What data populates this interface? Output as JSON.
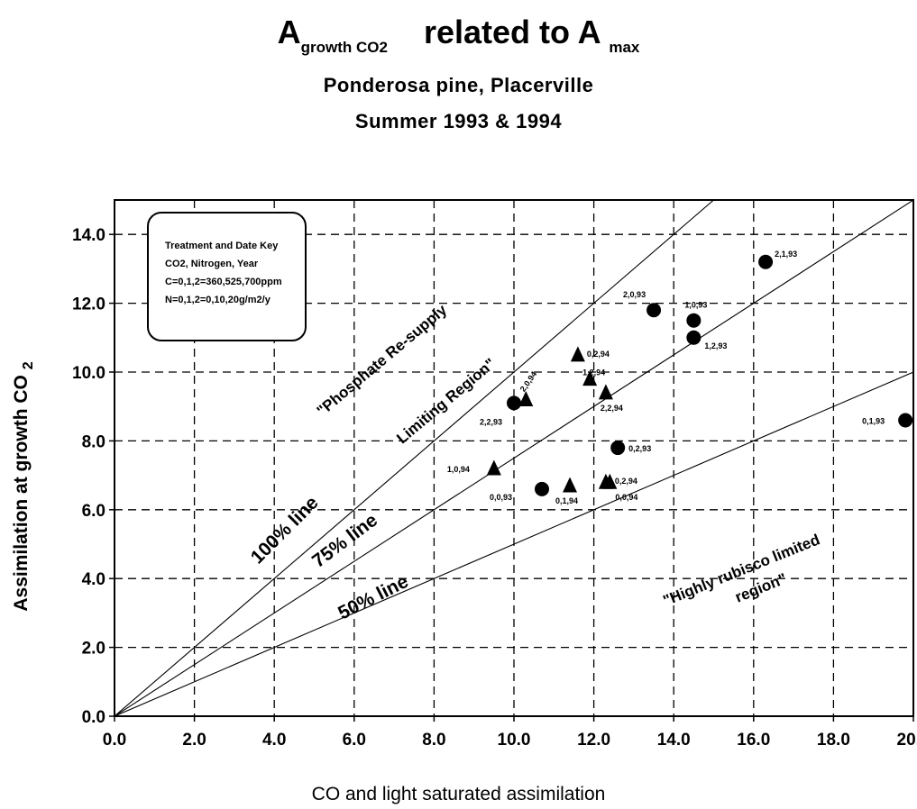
{
  "title": {
    "main": "A",
    "main_sub": "growth CO2",
    "related": "related to A",
    "related_sub": "max",
    "line2": "Ponderosa pine, Placerville",
    "line3": "Summer 1993 & 1994"
  },
  "key": {
    "title": "Treatment and Date Key",
    "line1": "CO2, Nitrogen, Year",
    "line2": "C=0,1,2=360,525,700ppm",
    "line3": "N=0,1,2=0,10,20g/m2/y"
  },
  "chart_data": {
    "type": "scatter",
    "xlabel": "CO  and light saturated assimilation",
    "ylabel": "Assimilation at growth CO",
    "ylabel_sub": "2",
    "xlim": [
      0,
      20
    ],
    "ylim": [
      0,
      14
    ],
    "x_ticks": [
      "0.0",
      "2.0",
      "4.0",
      "6.0",
      "8.0",
      "10.0",
      "12.0",
      "14.0",
      "16.0",
      "18.0",
      "20.0"
    ],
    "y_ticks": [
      "0.0",
      "2.0",
      "4.0",
      "6.0",
      "8.0",
      "10.0",
      "12.0",
      "14.0"
    ],
    "grid": true,
    "reference_lines": [
      {
        "label": "100% line",
        "slope": 1.0
      },
      {
        "label": "75% line",
        "slope": 0.75
      },
      {
        "label": "50% line",
        "slope": 0.5
      }
    ],
    "region_labels": [
      "\"Phosphate Re-supply",
      "Limiting Region\"",
      "\"Highly rubisco limited",
      "region\""
    ],
    "series": [
      {
        "marker": "circle",
        "points": [
          {
            "x": 16.3,
            "y": 13.2,
            "label": "2,1,93"
          },
          {
            "x": 13.5,
            "y": 11.8,
            "label": "2,0,93"
          },
          {
            "x": 14.5,
            "y": 11.5,
            "label": "1,0,93"
          },
          {
            "x": 14.5,
            "y": 11.0,
            "label": "1,2,93"
          },
          {
            "x": 10.0,
            "y": 9.1,
            "label": "2,2,93"
          },
          {
            "x": 19.8,
            "y": 8.6,
            "label": "0,1,93"
          },
          {
            "x": 12.6,
            "y": 7.8,
            "label": "0,2,93"
          },
          {
            "x": 10.7,
            "y": 6.6,
            "label": "0,0,93"
          }
        ]
      },
      {
        "marker": "triangle",
        "points": [
          {
            "x": 11.6,
            "y": 10.5,
            "label": "0,2,94"
          },
          {
            "x": 11.9,
            "y": 9.8,
            "label": "1,2,94"
          },
          {
            "x": 12.3,
            "y": 9.4,
            "label": "2,2,94"
          },
          {
            "x": 10.3,
            "y": 9.2,
            "label": "2,0,94"
          },
          {
            "x": 9.5,
            "y": 7.2,
            "label": "1,0,94"
          },
          {
            "x": 11.4,
            "y": 6.7,
            "label": "0,1,94"
          },
          {
            "x": 12.3,
            "y": 6.8,
            "label": "0,2,94"
          },
          {
            "x": 12.4,
            "y": 6.8,
            "label": "0,0,94"
          }
        ]
      }
    ]
  }
}
